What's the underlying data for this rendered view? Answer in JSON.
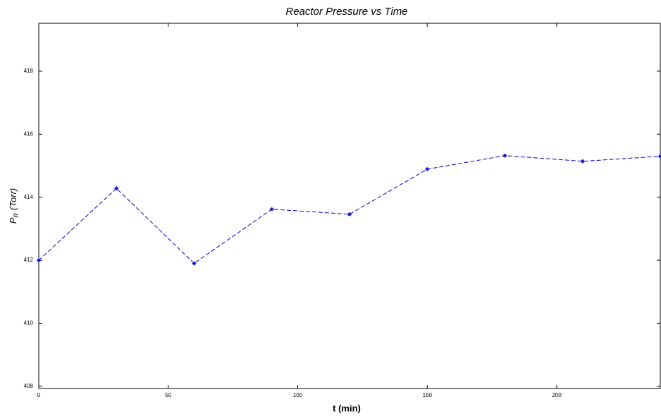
{
  "chart_data": {
    "type": "line",
    "title": "Reactor Pressure vs Time",
    "xlabel": "t (min)",
    "ylabel": {
      "symbol": "P",
      "subscript": "R",
      "unit": "(Torr)"
    },
    "x": [
      0,
      30,
      60,
      90,
      120,
      150,
      180,
      210,
      240
    ],
    "series": [
      {
        "color": "#0000cc",
        "values": [
          412.0,
          414.28,
          411.9,
          413.62,
          413.46,
          414.89,
          415.32,
          415.14,
          415.3
        ]
      }
    ],
    "xlim": [
      0,
      240
    ],
    "xticks": [
      0,
      50,
      100,
      150,
      200
    ],
    "ylim": [
      407.93,
      419.52
    ],
    "yticks": [
      408,
      410,
      412,
      414,
      416,
      418
    ],
    "grid": false
  }
}
